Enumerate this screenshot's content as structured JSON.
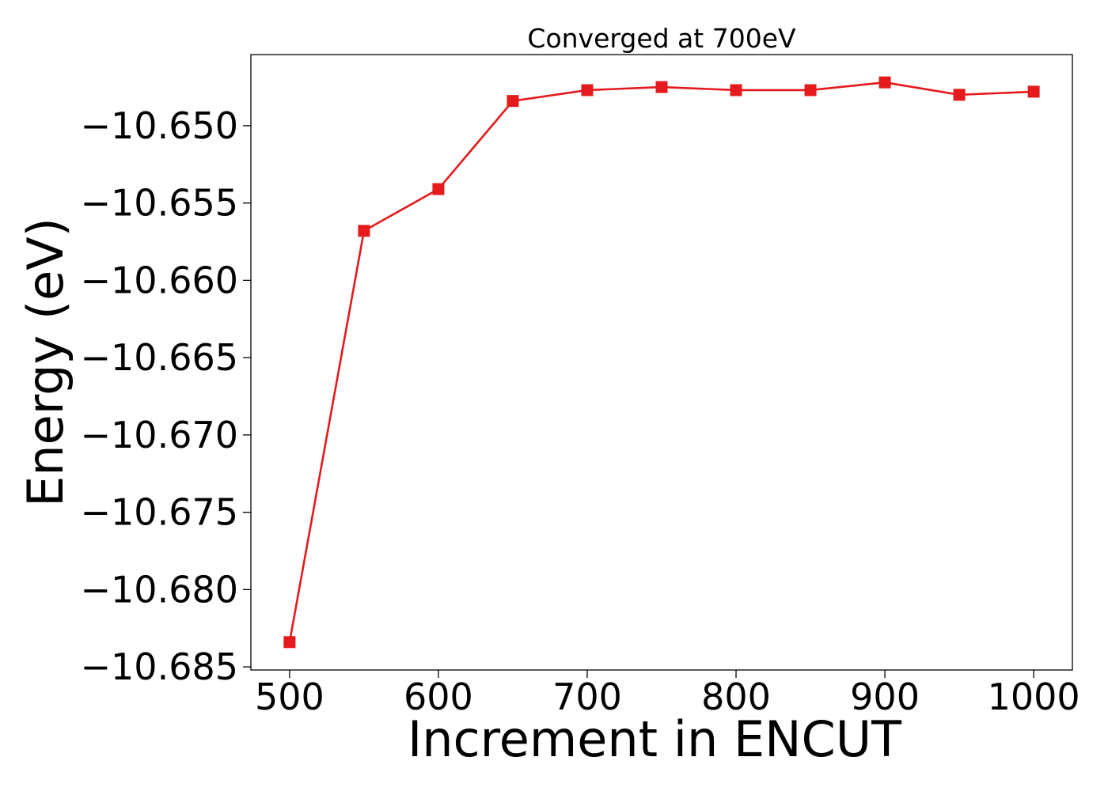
{
  "chart_data": {
    "type": "line",
    "title": "Converged at 700eV",
    "xlabel": "Increment in ENCUT",
    "ylabel": "Energy (eV)",
    "x": [
      500,
      550,
      600,
      650,
      700,
      750,
      800,
      850,
      900,
      950,
      1000
    ],
    "series": [
      {
        "values": [
          -10.6834,
          -10.6568,
          -10.6541,
          -10.6484,
          -10.6477,
          -10.6475,
          -10.6477,
          -10.6477,
          -10.6472,
          -10.648,
          -10.6478
        ],
        "color": "#e41a1c",
        "marker": "square"
      }
    ],
    "xlim": [
      474,
      1026
    ],
    "ylim": [
      -10.6852,
      -10.6454
    ],
    "xticks": [
      500,
      600,
      700,
      800,
      900,
      1000
    ],
    "xtick_labels": [
      "500",
      "600",
      "700",
      "800",
      "900",
      "1000"
    ],
    "yticks": [
      -10.685,
      -10.68,
      -10.675,
      -10.67,
      -10.665,
      -10.66,
      -10.655,
      -10.65
    ],
    "ytick_labels": [
      "−10.685",
      "−10.680",
      "−10.675",
      "−10.670",
      "−10.665",
      "−10.660",
      "−10.655",
      "−10.650"
    ],
    "grid": false,
    "legend": false
  }
}
